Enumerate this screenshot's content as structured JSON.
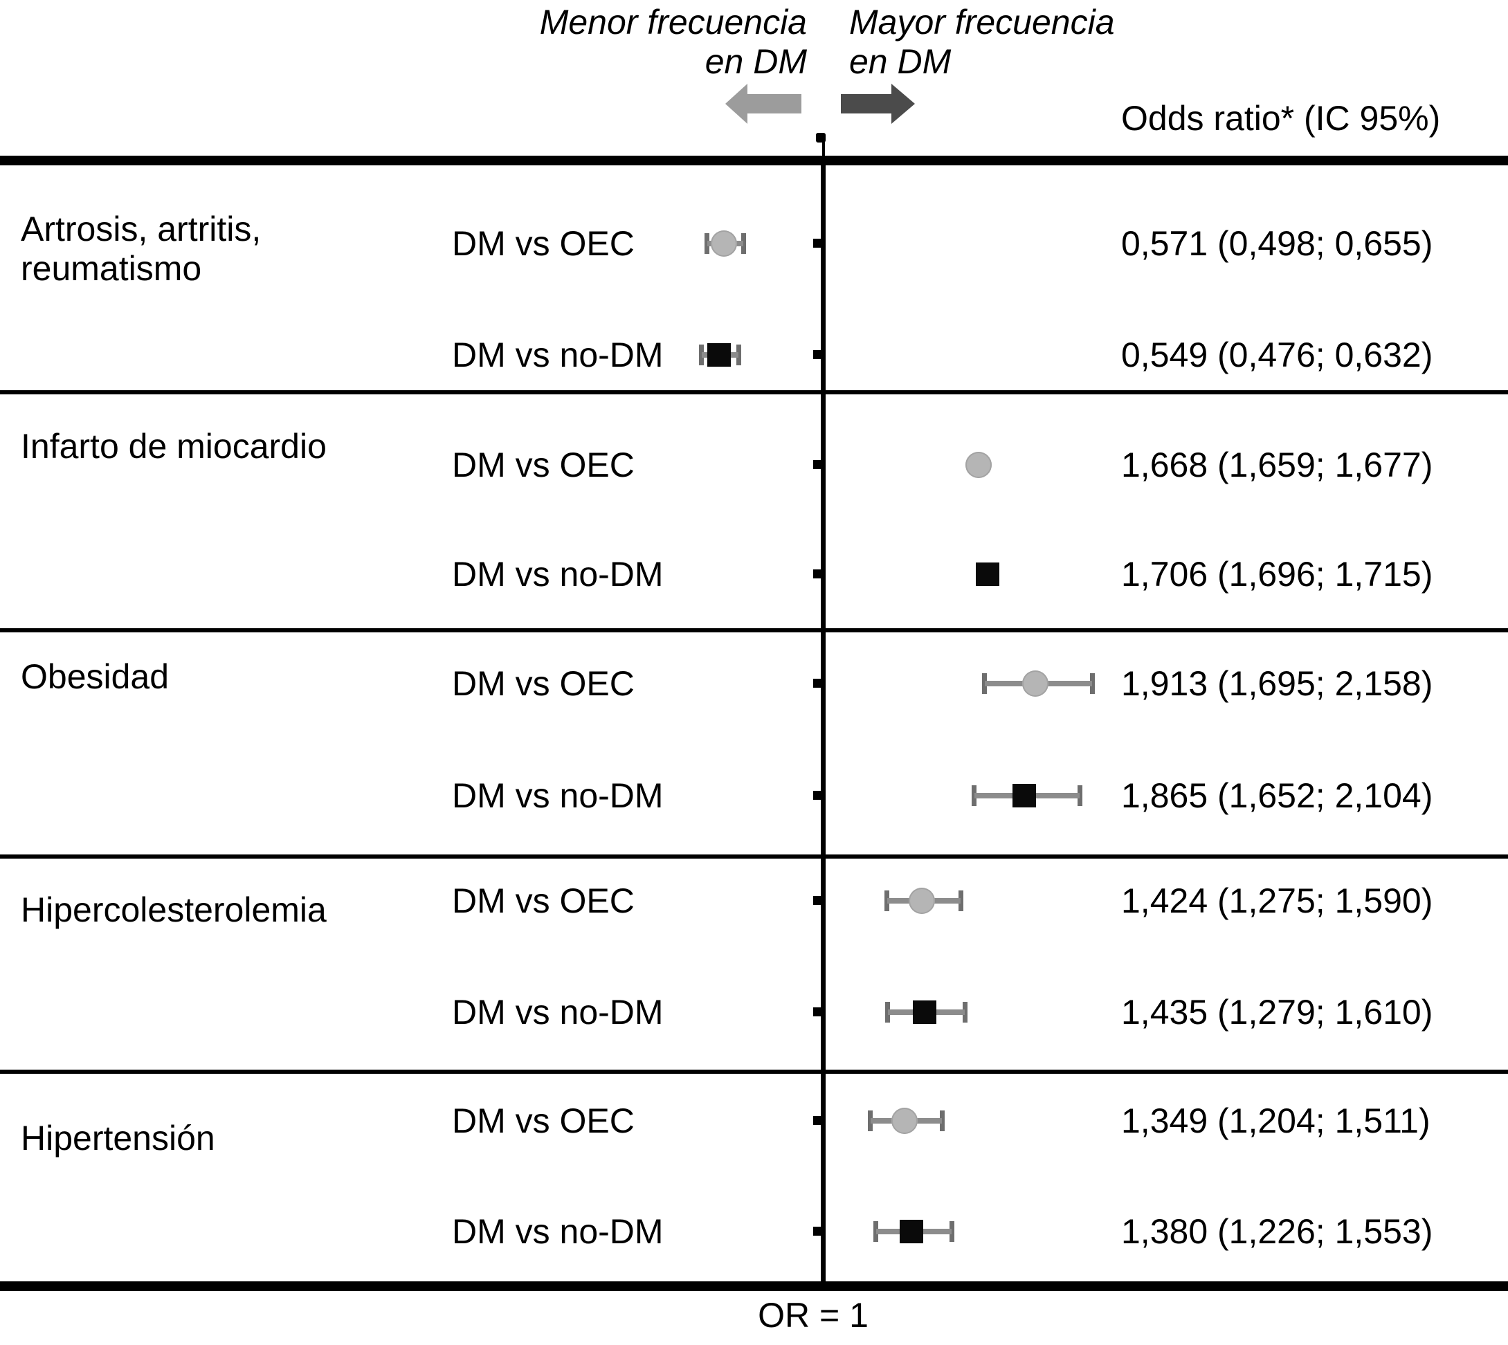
{
  "header": {
    "menor_lines": [
      "Menor frecuencia",
      "en DM"
    ],
    "mayor_lines": [
      "Mayor frecuencia",
      "en DM"
    ],
    "or_header": "Odds ratio* (IC 95%)"
  },
  "footer": {
    "axis_label": "OR = 1"
  },
  "colors": {
    "circle_marker": "#b5b5b5",
    "circle_marker_edge": "#a3a3a3",
    "square_marker": "#0a0a0a",
    "error_bar": "#8c8c8c",
    "error_cap": "#6e6e6e",
    "left_arrow": "#9c9c9c",
    "right_arrow": "#4b4b4b",
    "line": "#000000"
  },
  "chart_data": {
    "type": "scatter",
    "variant": "forest-plot",
    "x_reference_line": 1,
    "reference_label": "OR = 1",
    "value_column_header": "Odds ratio* (IC 95%)",
    "direction_annotations": {
      "left": "Menor frecuencia en DM",
      "right": "Mayor frecuencia en DM"
    },
    "marker_legend": {
      "circle": "DM vs OEC",
      "square": "DM vs no-DM"
    },
    "groups": [
      {
        "condition_lines": [
          "Artrosis, artritis,",
          "reumatismo"
        ],
        "rows": [
          {
            "comparison": "DM vs OEC",
            "marker": "circle",
            "or": 0.571,
            "ci_low": 0.498,
            "ci_high": 0.655,
            "value_label": "0,571 (0,498; 0,655)"
          },
          {
            "comparison": "DM vs no-DM",
            "marker": "square",
            "or": 0.549,
            "ci_low": 0.476,
            "ci_high": 0.632,
            "value_label": "0,549 (0,476; 0,632)"
          }
        ]
      },
      {
        "condition_lines": [
          "Infarto de miocardio"
        ],
        "rows": [
          {
            "comparison": "DM vs OEC",
            "marker": "circle",
            "or": 1.668,
            "ci_low": 1.659,
            "ci_high": 1.677,
            "value_label": "1,668 (1,659; 1,677)"
          },
          {
            "comparison": "DM vs no-DM",
            "marker": "square",
            "or": 1.706,
            "ci_low": 1.696,
            "ci_high": 1.715,
            "value_label": "1,706 (1,696; 1,715)"
          }
        ]
      },
      {
        "condition_lines": [
          "Obesidad"
        ],
        "rows": [
          {
            "comparison": "DM vs OEC",
            "marker": "circle",
            "or": 1.913,
            "ci_low": 1.695,
            "ci_high": 2.158,
            "value_label": "1,913 (1,695; 2,158)"
          },
          {
            "comparison": "DM vs no-DM",
            "marker": "square",
            "or": 1.865,
            "ci_low": 1.652,
            "ci_high": 2.104,
            "value_label": "1,865 (1,652; 2,104)"
          }
        ]
      },
      {
        "condition_lines": [
          "Hipercolesterolemia"
        ],
        "rows": [
          {
            "comparison": "DM vs OEC",
            "marker": "circle",
            "or": 1.424,
            "ci_low": 1.275,
            "ci_high": 1.59,
            "value_label": "1,424 (1,275; 1,590)"
          },
          {
            "comparison": "DM vs no-DM",
            "marker": "square",
            "or": 1.435,
            "ci_low": 1.279,
            "ci_high": 1.61,
            "value_label": "1,435 (1,279; 1,610)"
          }
        ]
      },
      {
        "condition_lines": [
          "Hipertensión"
        ],
        "rows": [
          {
            "comparison": "DM vs OEC",
            "marker": "circle",
            "or": 1.349,
            "ci_low": 1.204,
            "ci_high": 1.511,
            "value_label": "1,349 (1,204; 1,511)"
          },
          {
            "comparison": "DM vs no-DM",
            "marker": "square",
            "or": 1.38,
            "ci_low": 1.226,
            "ci_high": 1.553,
            "value_label": "1,380 (1,226; 1,553)"
          }
        ]
      }
    ]
  }
}
